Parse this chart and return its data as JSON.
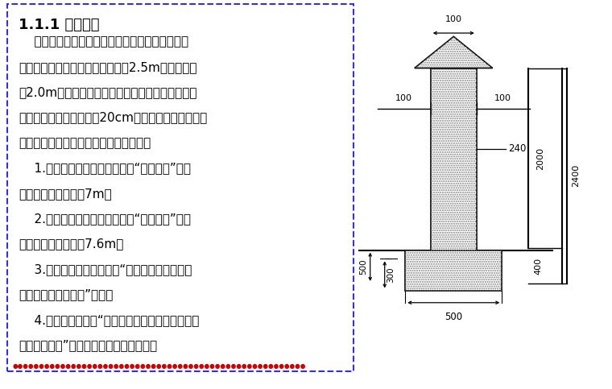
{
  "bg_color": "#ffffff",
  "border_color": "#3333cc",
  "title": "1.1.1 现场围挡",
  "title_fontsize": 13,
  "body_text": [
    "    围墙可用牀筑式，夹芯彩钉板式或波纹彩钉板。",
    "市区主要路段临街围墙高度不低于2.5m，其余不低",
    "于2.0m。市区主要路段临街面使用夹芯板或波纹彩",
    "钉板的，必须牀筑不小于20cm的基础。夹芯板用槽钉",
    "做支架，工字钉做立柱。围墙标志组合：",
    "    1.牀筑式：主要图案为企标加“南通二建”，为",
    "白底蓝字，每组间隔7m。",
    "    2.金属式：主要图案为企标加“南通二建”，为",
    "白底蓝字，每组间隔7.6m。",
    "    3.临街面或醒目位置应设“我们在此施工，给您",
    "带来不便，敬请谅解”标语。",
    "    4.靠近大门左侧为“建设单位、监理单位、设计单",
    "位、施工单位”全称，右侧为工程效果图。"
  ],
  "body_fontsize": 11,
  "bottom_color": "#cc0000",
  "dim_100_top": "100",
  "dim_100_left": "100",
  "dim_100_right": "100",
  "dim_240": "240",
  "dim_2000": "2000",
  "dim_2400": "2400",
  "dim_400": "400",
  "dim_500_left": "500",
  "dim_300": "300",
  "dim_500_bottom": "500"
}
